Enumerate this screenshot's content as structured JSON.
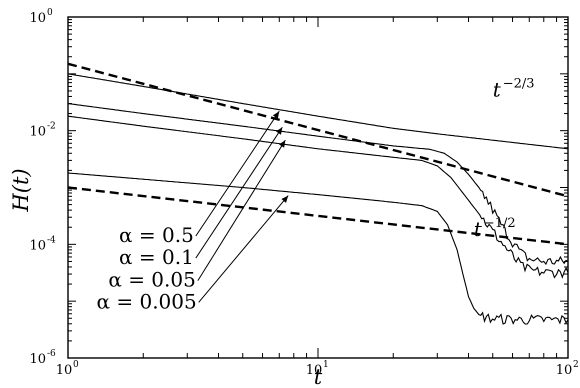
{
  "chart_data": {
    "type": "line",
    "x_scale": "log",
    "y_scale": "log",
    "xlim": [
      1,
      100
    ],
    "ylim": [
      1e-06,
      1
    ],
    "xlabel": "t",
    "ylabel": "H(t)",
    "x_ticks": [
      {
        "value": 1,
        "base": "10",
        "exp": "0"
      },
      {
        "value": 10,
        "base": "10",
        "exp": "1"
      },
      {
        "value": 100,
        "base": "10",
        "exp": "2"
      }
    ],
    "y_ticks": [
      {
        "value": 1,
        "base": "10",
        "exp": "0"
      },
      {
        "value": 0.01,
        "base": "10",
        "exp": "-2"
      },
      {
        "value": 0.0001,
        "base": "10",
        "exp": "-4"
      },
      {
        "value": 1e-06,
        "base": "10",
        "exp": "-6"
      }
    ],
    "reference_lines": [
      {
        "label_base": "t",
        "label_exp": "−2/3",
        "x": [
          1,
          100
        ],
        "y": [
          0.15,
          0.0007
        ],
        "label_at": [
          50,
          0.04
        ]
      },
      {
        "label_base": "t",
        "label_exp": "−1/2",
        "x": [
          1,
          100
        ],
        "y": [
          0.001,
          0.0001
        ],
        "label_at": [
          42,
          0.00014
        ]
      }
    ],
    "series": [
      {
        "label": "α = 0.5",
        "x": [
          1,
          2,
          5,
          10,
          20,
          30,
          50,
          100
        ],
        "y": [
          0.1,
          0.06,
          0.03,
          0.018,
          0.011,
          0.0088,
          0.0068,
          0.0048
        ]
      },
      {
        "label": "α = 0.1",
        "x": [
          1,
          2,
          5,
          10,
          20,
          28,
          32,
          36,
          40,
          44,
          48,
          52,
          56,
          60,
          65,
          70,
          80,
          90,
          100
        ],
        "y": [
          0.03,
          0.02,
          0.012,
          0.008,
          0.0054,
          0.0047,
          0.004,
          0.0028,
          0.0017,
          0.001,
          0.00055,
          0.0003,
          0.00017,
          0.00011,
          7e-05,
          5.5e-05,
          5e-05,
          5e-05,
          5e-05
        ]
      },
      {
        "label": "α = 0.05",
        "x": [
          1,
          2,
          5,
          10,
          20,
          26,
          30,
          34,
          38,
          42,
          46,
          50,
          54,
          58,
          62,
          66,
          70,
          80,
          90,
          100
        ],
        "y": [
          0.018,
          0.012,
          0.0072,
          0.0048,
          0.0034,
          0.003,
          0.0024,
          0.0015,
          0.0008,
          0.00045,
          0.00027,
          0.00017,
          0.00011,
          7.5e-05,
          5.2e-05,
          4e-05,
          3.5e-05,
          3.2e-05,
          3.2e-05,
          3.2e-05
        ]
      },
      {
        "label": "α = 0.005",
        "x": [
          1,
          2,
          5,
          10,
          20,
          26,
          30,
          33,
          36,
          38,
          40,
          42,
          44,
          48,
          55,
          65,
          80,
          100
        ],
        "y": [
          0.0018,
          0.0014,
          0.001,
          0.00075,
          0.00055,
          0.00048,
          0.00038,
          0.00022,
          8e-05,
          3e-05,
          1.2e-05,
          7.5e-06,
          5.8e-06,
          5e-06,
          4.8e-06,
          4.7e-06,
          4.7e-06,
          4.7e-06
        ]
      }
    ],
    "annotations": [
      {
        "text": "α = 0.5",
        "label_at": [
          1.6,
          0.00011
        ],
        "arrow_to": [
          7.0,
          0.022
        ]
      },
      {
        "text": "α = 0.1",
        "label_at": [
          1.6,
          4.5e-05
        ],
        "arrow_to": [
          7.2,
          0.0115
        ]
      },
      {
        "text": "α = 0.05",
        "label_at": [
          1.45,
          1.8e-05
        ],
        "arrow_to": [
          7.4,
          0.0068
        ]
      },
      {
        "text": "α = 0.005",
        "label_at": [
          1.3,
          7.5e-06
        ],
        "arrow_to": [
          7.6,
          0.00072
        ]
      }
    ],
    "grid": false,
    "legend": "none"
  }
}
